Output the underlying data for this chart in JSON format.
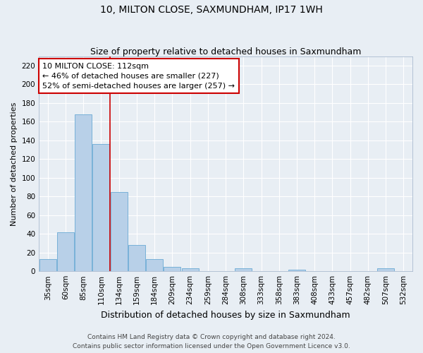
{
  "title": "10, MILTON CLOSE, SAXMUNDHAM, IP17 1WH",
  "subtitle": "Size of property relative to detached houses in Saxmundham",
  "xlabel": "Distribution of detached houses by size in Saxmundham",
  "ylabel": "Number of detached properties",
  "bar_labels": [
    "35sqm",
    "60sqm",
    "85sqm",
    "110sqm",
    "134sqm",
    "159sqm",
    "184sqm",
    "209sqm",
    "234sqm",
    "259sqm",
    "284sqm",
    "308sqm",
    "333sqm",
    "358sqm",
    "383sqm",
    "408sqm",
    "433sqm",
    "457sqm",
    "482sqm",
    "507sqm",
    "532sqm"
  ],
  "bar_values": [
    13,
    42,
    168,
    136,
    85,
    28,
    13,
    5,
    3,
    0,
    0,
    3,
    0,
    0,
    2,
    0,
    0,
    0,
    0,
    3,
    0
  ],
  "bar_color": "#b8d0e8",
  "bar_edge_color": "#6aaad4",
  "ylim": [
    0,
    230
  ],
  "yticks": [
    0,
    20,
    40,
    60,
    80,
    100,
    120,
    140,
    160,
    180,
    200,
    220
  ],
  "vline_x": 3.5,
  "vline_color": "#cc0000",
  "annotation_title": "10 MILTON CLOSE: 112sqm",
  "annotation_line1": "← 46% of detached houses are smaller (227)",
  "annotation_line2": "52% of semi-detached houses are larger (257) →",
  "annotation_box_color": "#cc0000",
  "footer1": "Contains HM Land Registry data © Crown copyright and database right 2024.",
  "footer2": "Contains public sector information licensed under the Open Government Licence v3.0.",
  "bg_color": "#e8eef4",
  "grid_color": "#ffffff",
  "title_fontsize": 10,
  "subtitle_fontsize": 9,
  "ylabel_fontsize": 8,
  "xlabel_fontsize": 9,
  "tick_fontsize": 7.5,
  "footer_fontsize": 6.5,
  "ann_fontsize": 8
}
